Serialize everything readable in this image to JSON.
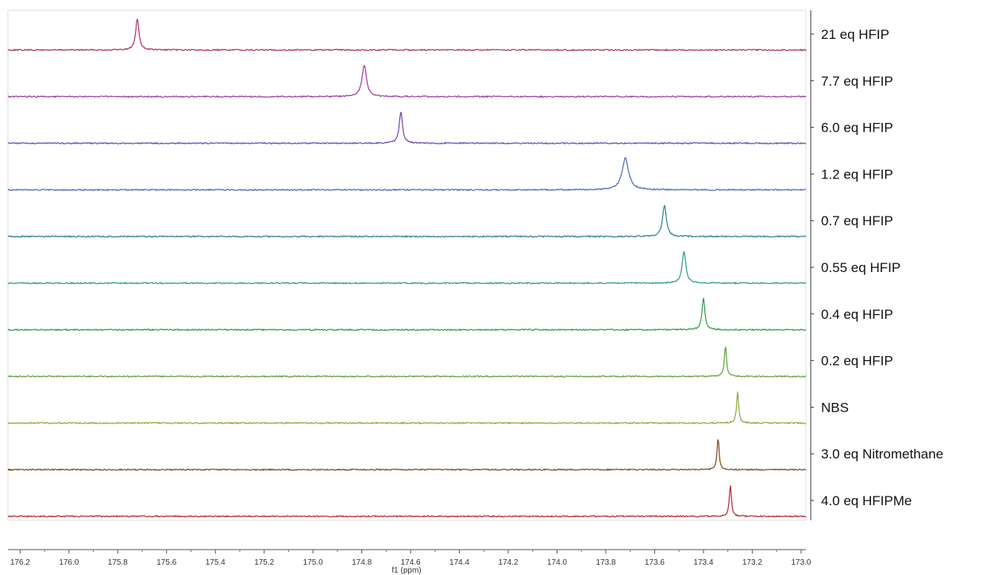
{
  "chart_data": {
    "type": "line",
    "xlabel": "f1 (ppm)",
    "ylabel": "",
    "xlim": [
      176.25,
      172.98
    ],
    "x_reversed": true,
    "grid": false,
    "legend_placement": "right",
    "x_ticks": [
      176.2,
      176.0,
      175.8,
      175.6,
      175.4,
      175.2,
      175.0,
      174.8,
      174.6,
      174.4,
      174.2,
      174.0,
      173.8,
      173.6,
      173.4,
      173.2,
      173.0
    ],
    "x_tick_labels": [
      "176.2",
      "176.0",
      "175.8",
      "175.6",
      "175.4",
      "175.2",
      "175.0",
      "174.8",
      "174.6",
      "174.4",
      "174.2",
      "174.0",
      "173.8",
      "173.6",
      "173.4",
      "173.2",
      "173.0"
    ],
    "series": [
      {
        "name": "21 eq HFIP",
        "peak_ppm": 175.72,
        "linewidth_ppm": 0.016,
        "peak_height": 1.0,
        "color": "#a8306a"
      },
      {
        "name": "7.7 eq HFIP",
        "peak_ppm": 174.79,
        "linewidth_ppm": 0.022,
        "peak_height": 1.0,
        "color": "#9a3a9e"
      },
      {
        "name": "6.0 eq HFIP",
        "peak_ppm": 174.64,
        "linewidth_ppm": 0.016,
        "peak_height": 1.0,
        "color": "#6a45b4"
      },
      {
        "name": "1.2 eq HFIP",
        "peak_ppm": 173.72,
        "linewidth_ppm": 0.032,
        "peak_height": 1.0,
        "color": "#4a68b4"
      },
      {
        "name": "0.7 eq HFIP",
        "peak_ppm": 173.56,
        "linewidth_ppm": 0.018,
        "peak_height": 1.0,
        "color": "#2f7a9a"
      },
      {
        "name": "0.55 eq HFIP",
        "peak_ppm": 173.48,
        "linewidth_ppm": 0.018,
        "peak_height": 1.0,
        "color": "#2c9a8a"
      },
      {
        "name": "0.4 eq HFIP",
        "peak_ppm": 173.4,
        "linewidth_ppm": 0.014,
        "peak_height": 1.0,
        "color": "#2f9a48"
      },
      {
        "name": "0.2 eq HFIP",
        "peak_ppm": 173.31,
        "linewidth_ppm": 0.01,
        "peak_height": 1.0,
        "color": "#5aa238"
      },
      {
        "name": "NBS",
        "peak_ppm": 173.26,
        "linewidth_ppm": 0.01,
        "peak_height": 1.0,
        "color": "#8aa838"
      },
      {
        "name": "3.0 eq Nitromethane",
        "peak_ppm": 173.34,
        "linewidth_ppm": 0.01,
        "peak_height": 1.0,
        "color": "#7a4a14"
      },
      {
        "name": "4.0 eq HFIPMe",
        "peak_ppm": 173.29,
        "linewidth_ppm": 0.01,
        "peak_height": 1.0,
        "color": "#b02a30"
      }
    ]
  }
}
